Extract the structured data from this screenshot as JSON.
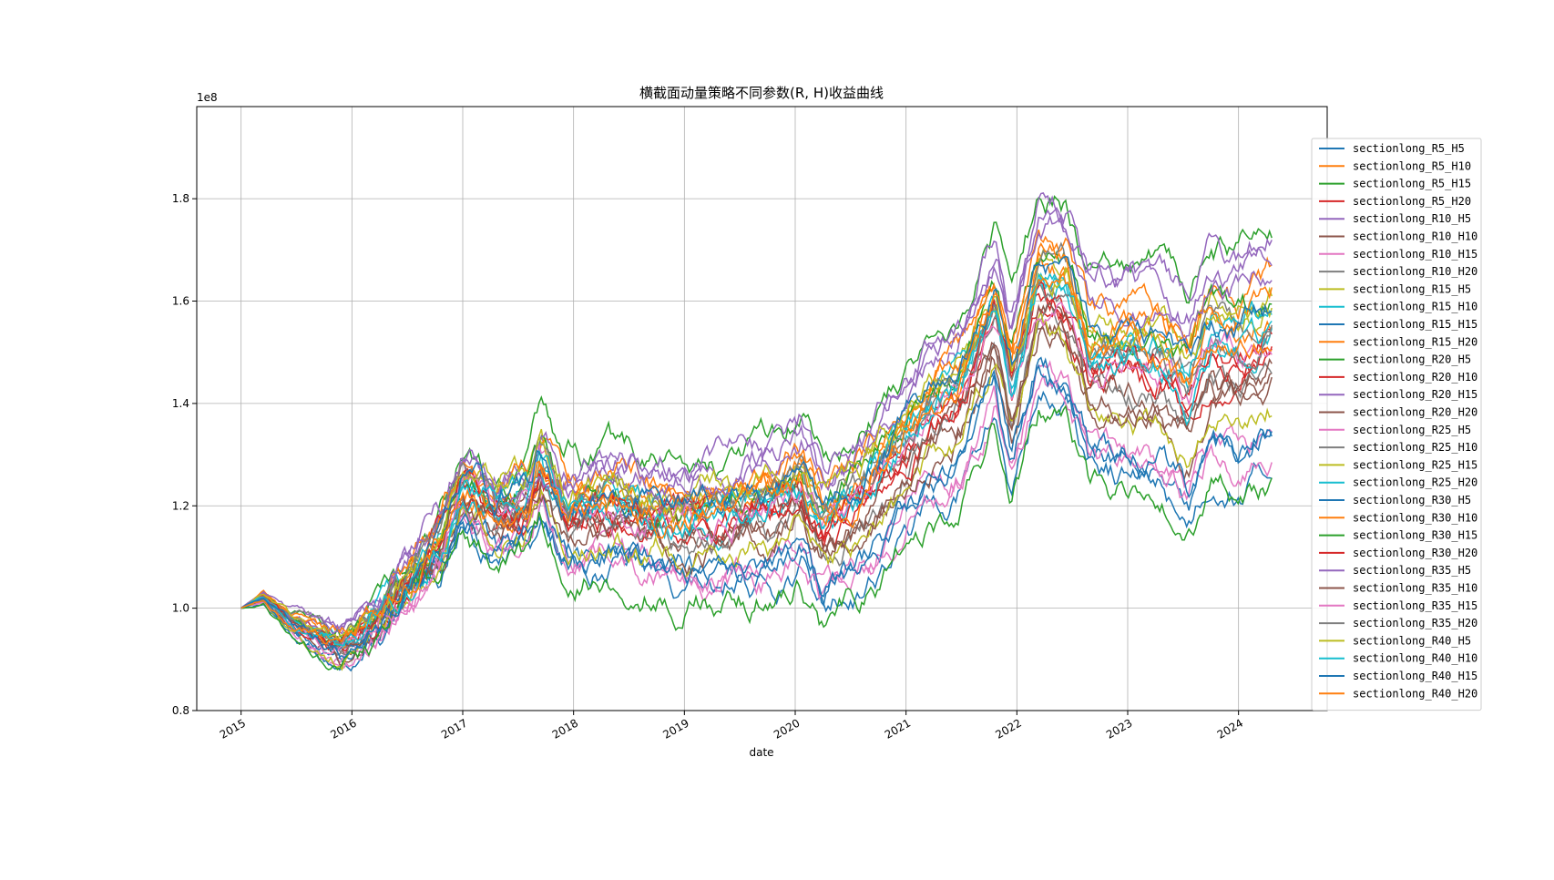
{
  "chart_data": {
    "type": "line",
    "title": "横截面动量策略不同参数(R, H)收益曲线",
    "xlabel": "date",
    "ylabel": "",
    "y_offset_label": "1e8",
    "x_ticks": [
      "2015",
      "2016",
      "2017",
      "2018",
      "2019",
      "2020",
      "2021",
      "2022",
      "2023",
      "2024"
    ],
    "y_ticks": [
      "0.8",
      "1.0",
      "1.2",
      "1.4",
      "1.6",
      "1.8"
    ],
    "xlim": [
      2014.6,
      2024.8
    ],
    "ylim": [
      0.8,
      1.98
    ],
    "grid": true,
    "legend_position": "center-right",
    "palette": [
      "#1f77b4",
      "#ff7f0e",
      "#2ca02c",
      "#d62728",
      "#9467bd",
      "#8c564b",
      "#e377c2",
      "#7f7f7f",
      "#bcbd22",
      "#17becf"
    ],
    "series": [
      {
        "name": "sectionlong_R5_H5",
        "end": 1.28
      },
      {
        "name": "sectionlong_R5_H10",
        "end": 1.58
      },
      {
        "name": "sectionlong_R5_H15",
        "end": 1.75
      },
      {
        "name": "sectionlong_R5_H20",
        "end": 1.5
      },
      {
        "name": "sectionlong_R10_H5",
        "end": 1.71
      },
      {
        "name": "sectionlong_R10_H10",
        "end": 1.45
      },
      {
        "name": "sectionlong_R10_H15",
        "end": 1.33
      },
      {
        "name": "sectionlong_R10_H20",
        "end": 1.47
      },
      {
        "name": "sectionlong_R15_H5",
        "end": 1.62
      },
      {
        "name": "sectionlong_R15_H10",
        "end": 1.55
      },
      {
        "name": "sectionlong_R15_H15",
        "end": 1.34
      },
      {
        "name": "sectionlong_R15_H20",
        "end": 1.65
      },
      {
        "name": "sectionlong_R20_H5",
        "end": 1.6
      },
      {
        "name": "sectionlong_R20_H10",
        "end": 1.52
      },
      {
        "name": "sectionlong_R20_H15",
        "end": 1.73
      },
      {
        "name": "sectionlong_R20_H20",
        "end": 1.43
      },
      {
        "name": "sectionlong_R25_H5",
        "end": 1.31
      },
      {
        "name": "sectionlong_R25_H10",
        "end": 1.58
      },
      {
        "name": "sectionlong_R25_H15",
        "end": 1.4
      },
      {
        "name": "sectionlong_R25_H20",
        "end": 1.57
      },
      {
        "name": "sectionlong_R30_H5",
        "end": 1.35
      },
      {
        "name": "sectionlong_R30_H10",
        "end": 1.62
      },
      {
        "name": "sectionlong_R30_H15",
        "end": 1.24
      },
      {
        "name": "sectionlong_R30_H20",
        "end": 1.51
      },
      {
        "name": "sectionlong_R35_H5",
        "end": 1.68
      },
      {
        "name": "sectionlong_R35_H10",
        "end": 1.46
      },
      {
        "name": "sectionlong_R35_H15",
        "end": 1.53
      },
      {
        "name": "sectionlong_R35_H20",
        "end": 1.56
      },
      {
        "name": "sectionlong_R40_H5",
        "end": 1.6
      },
      {
        "name": "sectionlong_R40_H10",
        "end": 1.54
      },
      {
        "name": "sectionlong_R40_H15",
        "end": 1.59
      },
      {
        "name": "sectionlong_R40_H20",
        "end": 1.55
      }
    ]
  }
}
